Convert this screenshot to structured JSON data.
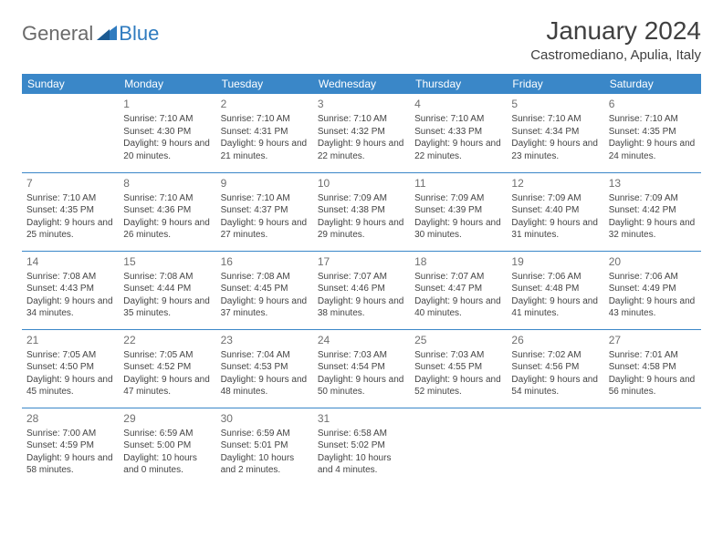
{
  "brand": {
    "part1": "General",
    "part2": "Blue"
  },
  "title": "January 2024",
  "location": "Castromediano, Apulia, Italy",
  "colors": {
    "header_bg": "#3a87c8",
    "header_fg": "#ffffff",
    "rule": "#3a87c8",
    "text": "#444444",
    "title": "#404040",
    "logo_gray": "#6a6a6a",
    "logo_blue": "#2f7bbf"
  },
  "weekdays": [
    "Sunday",
    "Monday",
    "Tuesday",
    "Wednesday",
    "Thursday",
    "Friday",
    "Saturday"
  ],
  "weeks": [
    [
      null,
      {
        "n": "1",
        "sr": "7:10 AM",
        "ss": "4:30 PM",
        "dl": "9 hours and 20 minutes."
      },
      {
        "n": "2",
        "sr": "7:10 AM",
        "ss": "4:31 PM",
        "dl": "9 hours and 21 minutes."
      },
      {
        "n": "3",
        "sr": "7:10 AM",
        "ss": "4:32 PM",
        "dl": "9 hours and 22 minutes."
      },
      {
        "n": "4",
        "sr": "7:10 AM",
        "ss": "4:33 PM",
        "dl": "9 hours and 22 minutes."
      },
      {
        "n": "5",
        "sr": "7:10 AM",
        "ss": "4:34 PM",
        "dl": "9 hours and 23 minutes."
      },
      {
        "n": "6",
        "sr": "7:10 AM",
        "ss": "4:35 PM",
        "dl": "9 hours and 24 minutes."
      }
    ],
    [
      {
        "n": "7",
        "sr": "7:10 AM",
        "ss": "4:35 PM",
        "dl": "9 hours and 25 minutes."
      },
      {
        "n": "8",
        "sr": "7:10 AM",
        "ss": "4:36 PM",
        "dl": "9 hours and 26 minutes."
      },
      {
        "n": "9",
        "sr": "7:10 AM",
        "ss": "4:37 PM",
        "dl": "9 hours and 27 minutes."
      },
      {
        "n": "10",
        "sr": "7:09 AM",
        "ss": "4:38 PM",
        "dl": "9 hours and 29 minutes."
      },
      {
        "n": "11",
        "sr": "7:09 AM",
        "ss": "4:39 PM",
        "dl": "9 hours and 30 minutes."
      },
      {
        "n": "12",
        "sr": "7:09 AM",
        "ss": "4:40 PM",
        "dl": "9 hours and 31 minutes."
      },
      {
        "n": "13",
        "sr": "7:09 AM",
        "ss": "4:42 PM",
        "dl": "9 hours and 32 minutes."
      }
    ],
    [
      {
        "n": "14",
        "sr": "7:08 AM",
        "ss": "4:43 PM",
        "dl": "9 hours and 34 minutes."
      },
      {
        "n": "15",
        "sr": "7:08 AM",
        "ss": "4:44 PM",
        "dl": "9 hours and 35 minutes."
      },
      {
        "n": "16",
        "sr": "7:08 AM",
        "ss": "4:45 PM",
        "dl": "9 hours and 37 minutes."
      },
      {
        "n": "17",
        "sr": "7:07 AM",
        "ss": "4:46 PM",
        "dl": "9 hours and 38 minutes."
      },
      {
        "n": "18",
        "sr": "7:07 AM",
        "ss": "4:47 PM",
        "dl": "9 hours and 40 minutes."
      },
      {
        "n": "19",
        "sr": "7:06 AM",
        "ss": "4:48 PM",
        "dl": "9 hours and 41 minutes."
      },
      {
        "n": "20",
        "sr": "7:06 AM",
        "ss": "4:49 PM",
        "dl": "9 hours and 43 minutes."
      }
    ],
    [
      {
        "n": "21",
        "sr": "7:05 AM",
        "ss": "4:50 PM",
        "dl": "9 hours and 45 minutes."
      },
      {
        "n": "22",
        "sr": "7:05 AM",
        "ss": "4:52 PM",
        "dl": "9 hours and 47 minutes."
      },
      {
        "n": "23",
        "sr": "7:04 AM",
        "ss": "4:53 PM",
        "dl": "9 hours and 48 minutes."
      },
      {
        "n": "24",
        "sr": "7:03 AM",
        "ss": "4:54 PM",
        "dl": "9 hours and 50 minutes."
      },
      {
        "n": "25",
        "sr": "7:03 AM",
        "ss": "4:55 PM",
        "dl": "9 hours and 52 minutes."
      },
      {
        "n": "26",
        "sr": "7:02 AM",
        "ss": "4:56 PM",
        "dl": "9 hours and 54 minutes."
      },
      {
        "n": "27",
        "sr": "7:01 AM",
        "ss": "4:58 PM",
        "dl": "9 hours and 56 minutes."
      }
    ],
    [
      {
        "n": "28",
        "sr": "7:00 AM",
        "ss": "4:59 PM",
        "dl": "9 hours and 58 minutes."
      },
      {
        "n": "29",
        "sr": "6:59 AM",
        "ss": "5:00 PM",
        "dl": "10 hours and 0 minutes."
      },
      {
        "n": "30",
        "sr": "6:59 AM",
        "ss": "5:01 PM",
        "dl": "10 hours and 2 minutes."
      },
      {
        "n": "31",
        "sr": "6:58 AM",
        "ss": "5:02 PM",
        "dl": "10 hours and 4 minutes."
      },
      null,
      null,
      null
    ]
  ],
  "labels": {
    "sunrise": "Sunrise:",
    "sunset": "Sunset:",
    "daylight": "Daylight:"
  }
}
